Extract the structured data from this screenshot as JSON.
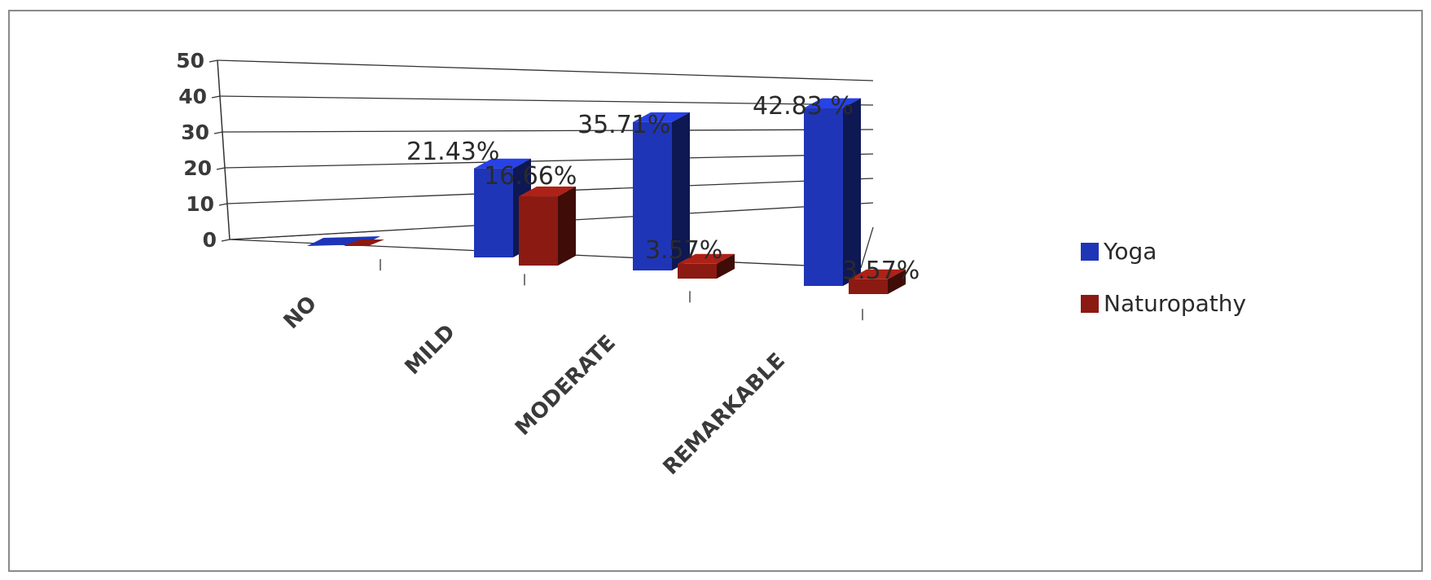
{
  "chart_data": {
    "type": "bar",
    "style": "3d-clustered-column",
    "categories": [
      "NO",
      "MILD",
      "MODERATE",
      "REMARKABLE"
    ],
    "series": [
      {
        "name": "Yoga",
        "color": "#1f35b8",
        "values": [
          0,
          21.43,
          35.71,
          42.83
        ],
        "labels": [
          "",
          "21.43%",
          "35.71%",
          "42.83 %"
        ]
      },
      {
        "name": "Naturopathy",
        "color": "#8b1a12",
        "values": [
          0,
          16.66,
          3.57,
          3.57
        ],
        "labels": [
          "",
          "16.66%",
          "3.57%",
          "3.57%"
        ]
      }
    ],
    "yticks": [
      "0",
      "10",
      "20",
      "30",
      "40",
      "50"
    ],
    "ylim": [
      0,
      50
    ],
    "grid": true,
    "legend_position": "right"
  }
}
